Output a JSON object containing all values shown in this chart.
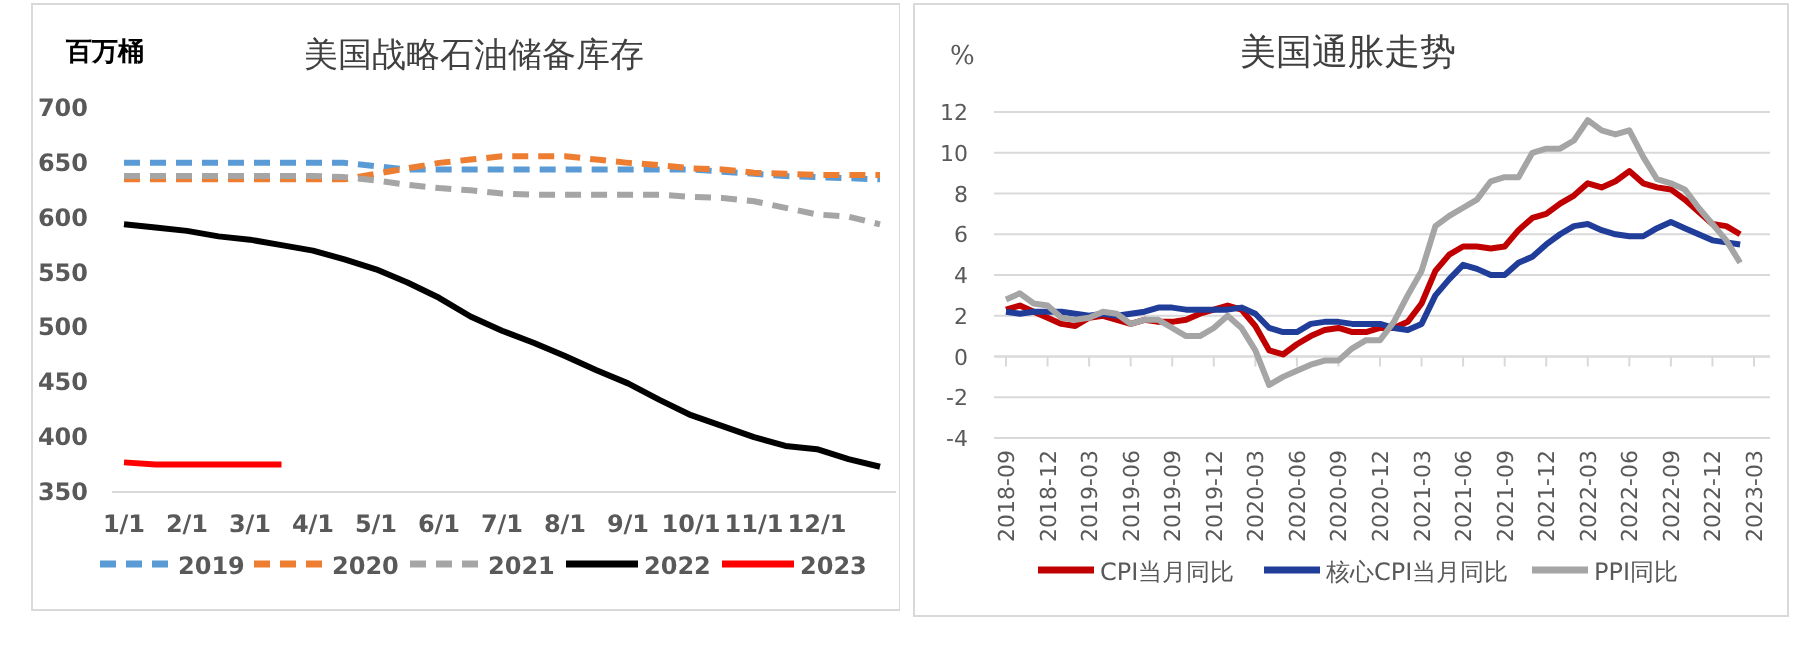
{
  "chart_data": [
    {
      "type": "line",
      "title": "美国战略石油储备库存",
      "ylabel": "百万桶",
      "categories": [
        "1/1",
        null,
        "2/1",
        null,
        "3/1",
        null,
        "4/1",
        null,
        "5/1",
        null,
        "6/1",
        null,
        "7/1",
        null,
        "8/1",
        null,
        "9/1",
        null,
        "10/1",
        null,
        "11/1",
        null,
        "12/1",
        null,
        null
      ],
      "ylim": [
        350,
        700
      ],
      "yticks": [
        350,
        400,
        450,
        500,
        550,
        600,
        650,
        700
      ],
      "grid": false,
      "legend": "bottom",
      "series": [
        {
          "name": "2019",
          "color": "#5b9bd5",
          "line_style": "dashed",
          "values": [
            650,
            650,
            650,
            650,
            650,
            650,
            650,
            650,
            647,
            644,
            644,
            644,
            644,
            644,
            644,
            644,
            644,
            644,
            644,
            642,
            640,
            638,
            637,
            636,
            635
          ]
        },
        {
          "name": "2020",
          "color": "#ed7d31",
          "line_style": "dashed",
          "values": [
            635,
            635,
            635,
            635,
            635,
            635,
            635,
            635,
            640,
            645,
            650,
            653,
            656,
            656,
            656,
            653,
            650,
            648,
            645,
            644,
            641,
            640,
            639,
            639,
            639
          ]
        },
        {
          "name": "2021",
          "color": "#a5a5a5",
          "line_style": "dashed",
          "values": [
            638,
            638,
            638,
            638,
            638,
            638,
            638,
            637,
            634,
            630,
            627,
            625,
            622,
            621,
            621,
            621,
            621,
            621,
            619,
            618,
            615,
            609,
            603,
            601,
            594
          ]
        },
        {
          "name": "2022",
          "color": "#000000",
          "line_style": "solid",
          "values": [
            594,
            591,
            588,
            583,
            580,
            575,
            570,
            562,
            553,
            541,
            527,
            510,
            497,
            486,
            474,
            461,
            449,
            434,
            420,
            410,
            400,
            392,
            389,
            380,
            373
          ]
        },
        {
          "name": "2023",
          "color": "#ff0000",
          "line_style": "solid",
          "values": [
            377,
            375,
            375,
            375,
            375,
            375,
            null,
            null,
            null,
            null,
            null,
            null,
            null,
            null,
            null,
            null,
            null,
            null,
            null,
            null,
            null,
            null,
            null,
            null,
            null
          ]
        }
      ]
    },
    {
      "type": "line",
      "title": "美国通胀走势",
      "ylabel": "%",
      "categories": [
        "2018-09",
        null,
        null,
        "2018-12",
        null,
        null,
        "2019-03",
        null,
        null,
        "2019-06",
        null,
        null,
        "2019-09",
        null,
        null,
        "2019-12",
        null,
        null,
        "2020-03",
        null,
        null,
        "2020-06",
        null,
        null,
        "2020-09",
        null,
        null,
        "2020-12",
        null,
        null,
        "2021-03",
        null,
        null,
        "2021-06",
        null,
        null,
        "2021-09",
        null,
        null,
        "2021-12",
        null,
        null,
        "2022-03",
        null,
        null,
        "2022-06",
        null,
        null,
        "2022-09",
        null,
        null,
        "2022-12",
        null,
        null,
        "2023-03"
      ],
      "ylim": [
        -4,
        12
      ],
      "yticks": [
        -4,
        -2,
        0,
        2,
        4,
        6,
        8,
        10,
        12
      ],
      "grid": "y",
      "legend": "bottom",
      "series": [
        {
          "name": "CPI当月同比",
          "color": "#c00000",
          "values": [
            2.3,
            2.5,
            2.2,
            1.9,
            1.6,
            1.5,
            1.9,
            2.0,
            1.8,
            1.6,
            1.8,
            1.7,
            1.7,
            1.8,
            2.1,
            2.3,
            2.5,
            2.3,
            1.5,
            0.3,
            0.1,
            0.6,
            1.0,
            1.3,
            1.4,
            1.2,
            1.2,
            1.4,
            1.4,
            1.7,
            2.6,
            4.2,
            5.0,
            5.4,
            5.4,
            5.3,
            5.4,
            6.2,
            6.8,
            7.0,
            7.5,
            7.9,
            8.5,
            8.3,
            8.6,
            9.1,
            8.5,
            8.3,
            8.2,
            7.7,
            7.1,
            6.5,
            6.4,
            6.0,
            null
          ]
        },
        {
          "name": "核心CPI当月同比",
          "color": "#1f3d99",
          "values": [
            2.2,
            2.1,
            2.2,
            2.2,
            2.2,
            2.1,
            2.0,
            2.1,
            2.0,
            2.1,
            2.2,
            2.4,
            2.4,
            2.3,
            2.3,
            2.3,
            2.3,
            2.4,
            2.1,
            1.4,
            1.2,
            1.2,
            1.6,
            1.7,
            1.7,
            1.6,
            1.6,
            1.6,
            1.4,
            1.3,
            1.6,
            3.0,
            3.8,
            4.5,
            4.3,
            4.0,
            4.0,
            4.6,
            4.9,
            5.5,
            6.0,
            6.4,
            6.5,
            6.2,
            6.0,
            5.9,
            5.9,
            6.3,
            6.6,
            6.3,
            6.0,
            5.7,
            5.6,
            5.5,
            null
          ]
        },
        {
          "name": "PPI同比",
          "color": "#a5a5a5",
          "values": [
            2.8,
            3.1,
            2.6,
            2.5,
            1.9,
            1.8,
            1.9,
            2.2,
            2.1,
            1.6,
            1.8,
            1.8,
            1.4,
            1.0,
            1.0,
            1.4,
            2.0,
            1.4,
            0.3,
            -1.4,
            -1.0,
            -0.7,
            -0.4,
            -0.2,
            -0.2,
            0.4,
            0.8,
            0.8,
            1.7,
            3.0,
            4.2,
            6.4,
            6.9,
            7.3,
            7.7,
            8.6,
            8.8,
            8.8,
            10.0,
            10.2,
            10.2,
            10.6,
            11.6,
            11.1,
            10.9,
            11.1,
            9.8,
            8.7,
            8.5,
            8.2,
            7.3,
            6.5,
            5.7,
            4.6,
            null
          ]
        }
      ]
    }
  ]
}
